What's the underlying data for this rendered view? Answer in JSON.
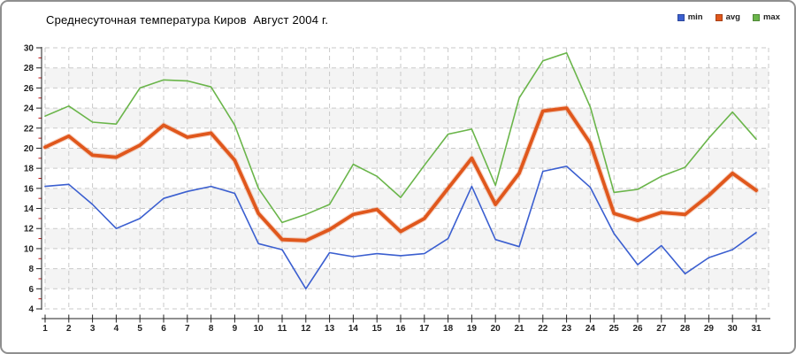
{
  "title": "Среднесуточная температура Киров  Август 2004 г.",
  "chart_data": {
    "type": "line",
    "title": "Среднесуточная температура Киров  Август 2004 г.",
    "categories": [
      1,
      2,
      3,
      4,
      5,
      6,
      7,
      8,
      9,
      10,
      11,
      12,
      13,
      14,
      15,
      16,
      17,
      18,
      19,
      20,
      21,
      22,
      23,
      24,
      25,
      26,
      27,
      28,
      29,
      30,
      31
    ],
    "series": [
      {
        "name": "min",
        "color": "#3b5fd0",
        "values": [
          16.2,
          16.4,
          14.4,
          12.0,
          13.0,
          15.0,
          15.7,
          16.2,
          15.5,
          10.5,
          9.9,
          6.0,
          9.6,
          9.2,
          9.5,
          9.3,
          9.5,
          11.0,
          16.2,
          10.9,
          10.2,
          17.7,
          18.2,
          16.1,
          11.5,
          8.4,
          10.3,
          7.5,
          9.1,
          9.9,
          11.6
        ]
      },
      {
        "name": "avg",
        "color": "#e0571c",
        "values": [
          20.1,
          21.2,
          19.3,
          19.1,
          20.3,
          22.3,
          21.1,
          21.5,
          18.8,
          13.5,
          10.9,
          10.8,
          11.9,
          13.4,
          13.9,
          11.7,
          13.0,
          16.0,
          19.0,
          14.4,
          17.5,
          23.7,
          24.0,
          20.5,
          13.5,
          12.8,
          13.6,
          13.4,
          15.3,
          17.5,
          15.8
        ]
      },
      {
        "name": "max",
        "color": "#6ab54a",
        "values": [
          23.2,
          24.2,
          22.6,
          22.4,
          26.0,
          26.8,
          26.7,
          26.1,
          22.3,
          16.0,
          12.6,
          13.4,
          14.4,
          18.4,
          17.2,
          15.1,
          18.3,
          21.4,
          21.9,
          16.3,
          25.0,
          28.7,
          29.5,
          24.1,
          15.6,
          15.9,
          17.2,
          18.1,
          21.0,
          23.6,
          20.9
        ]
      }
    ],
    "xlabel": "",
    "ylabel": "",
    "ylim": [
      4,
      30
    ],
    "y_tick_step": 2,
    "grid": true,
    "legend_position": "top-right",
    "colors": {
      "grid_line": "#c9c9c9",
      "band_fill": "#f4f4f4",
      "axis": "#222222",
      "minor_tick": "#bb1111"
    }
  }
}
